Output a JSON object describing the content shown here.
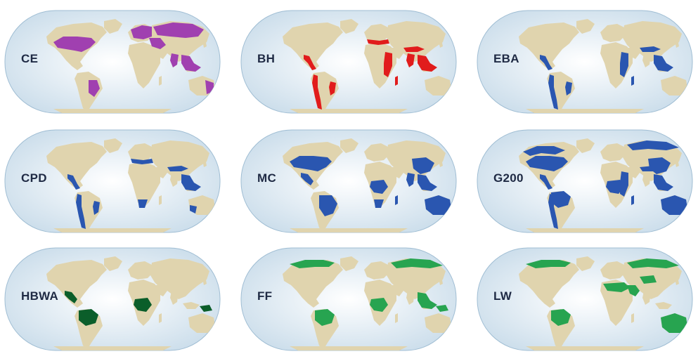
{
  "colors": {
    "ocean_center": "#ffffff",
    "ocean_edge": "#c9dcea",
    "ocean_border": "#9fbdd3",
    "land": "#e0d4ae",
    "label": "#1f2a44"
  },
  "panels": [
    {
      "label": "CE",
      "color": "#a040b0",
      "highlight": [
        "us",
        "southamerica_east",
        "europe",
        "mideast",
        "asia",
        "india",
        "sea",
        "australia_east"
      ]
    },
    {
      "label": "BH",
      "color": "#e11c1c",
      "highlight": [
        "mesoamerica",
        "andes",
        "brazil_coast",
        "mediterranean",
        "eastafrica",
        "india",
        "himalaya",
        "sea",
        "madagascar",
        "nz"
      ]
    },
    {
      "label": "EBA",
      "color": "#2a56b0",
      "highlight": [
        "mesoamerica",
        "andes",
        "brazil_coast",
        "eastafrica",
        "himalaya",
        "sea",
        "madagascar",
        "nz"
      ]
    },
    {
      "label": "CPD",
      "color": "#2a56b0",
      "highlight": [
        "mesoamerica",
        "andes",
        "brazil_coast",
        "southafrica",
        "mediterranean",
        "himalaya",
        "sea",
        "australia_sw"
      ]
    },
    {
      "label": "MC",
      "color": "#2a56b0",
      "highlight": [
        "us",
        "mexico",
        "brazil",
        "congo",
        "southafrica",
        "china",
        "india",
        "sea",
        "australia",
        "madagascar"
      ]
    },
    {
      "label": "G200",
      "color": "#2a56b0",
      "highlight": [
        "canada",
        "us",
        "mesoamerica",
        "amazon",
        "andes",
        "eastafrica",
        "congo",
        "siberia",
        "himalaya",
        "china",
        "sea",
        "australia",
        "madagascar"
      ]
    },
    {
      "label": "HBWA",
      "color": "#0b5e2a",
      "highlight": [
        "mexico",
        "amazon",
        "congo",
        "newguinea"
      ]
    },
    {
      "label": "FF",
      "color": "#27a450",
      "highlight": [
        "canada_north",
        "amazon",
        "congo",
        "siberia",
        "sea",
        "newguinea"
      ]
    },
    {
      "label": "LW",
      "color": "#27a450",
      "highlight": [
        "canada_north",
        "amazon",
        "sahara",
        "arabia",
        "siberia",
        "tibet",
        "australia"
      ]
    }
  ]
}
